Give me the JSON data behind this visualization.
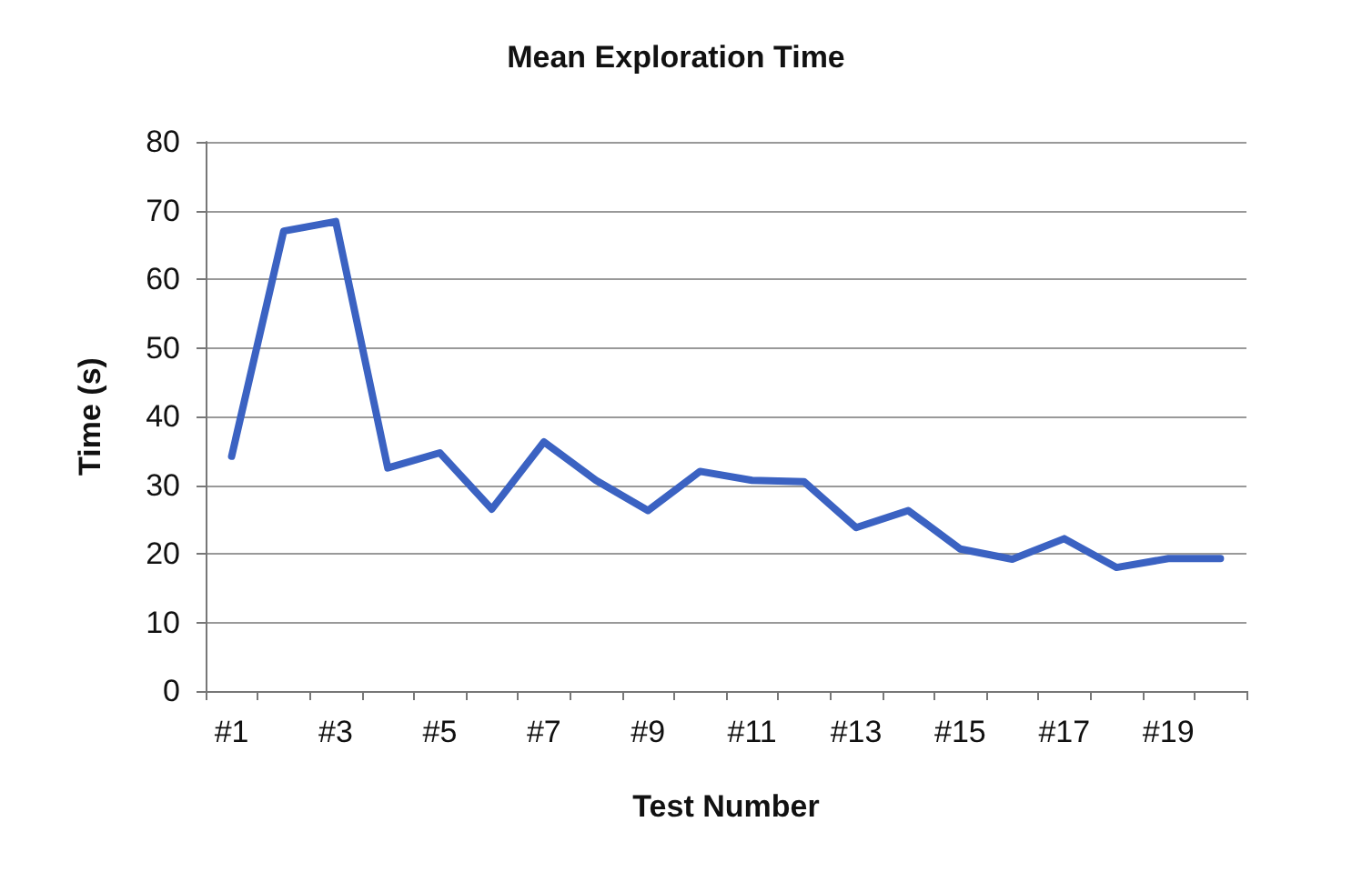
{
  "chart_data": {
    "type": "line",
    "title": "Mean Exploration Time",
    "xlabel": "Test Number",
    "ylabel": "Time (s)",
    "categories": [
      "#1",
      null,
      "#3",
      null,
      "#5",
      null,
      "#7",
      null,
      "#9",
      null,
      "#11",
      null,
      "#13",
      null,
      "#15",
      null,
      "#17",
      null,
      "#19",
      null
    ],
    "series": [
      {
        "color": "#3b62c2",
        "values": [
          34.2,
          67,
          68.4,
          32.5,
          34.7,
          26.5,
          36.3,
          30.7,
          26.3,
          32,
          30.7,
          30.5,
          23.8,
          26.3,
          20.7,
          19.2,
          22.2,
          18,
          19.3,
          19.3
        ]
      }
    ],
    "ylim": [
      0,
      80
    ],
    "yticks": [
      0,
      10,
      20,
      30,
      40,
      50,
      60,
      70,
      80
    ],
    "grid": "y",
    "marker": "none",
    "line_style": "solid"
  }
}
